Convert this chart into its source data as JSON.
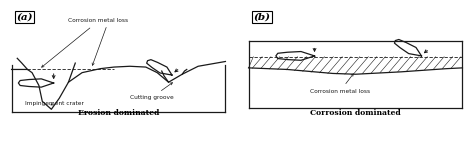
{
  "title_a": "(a)",
  "title_b": "(b)",
  "label_erosion": "Erosion dominated",
  "label_corrosion_dom": "Corrosion dominated",
  "label_corrosion_loss_a": "Corrosion metal loss",
  "label_impingement": "Impingement crater",
  "label_cutting": "Cutting groove",
  "label_corrosion_loss_b": "Corrosion metal loss",
  "bg_color": "#ffffff",
  "line_color": "#1a1a1a"
}
